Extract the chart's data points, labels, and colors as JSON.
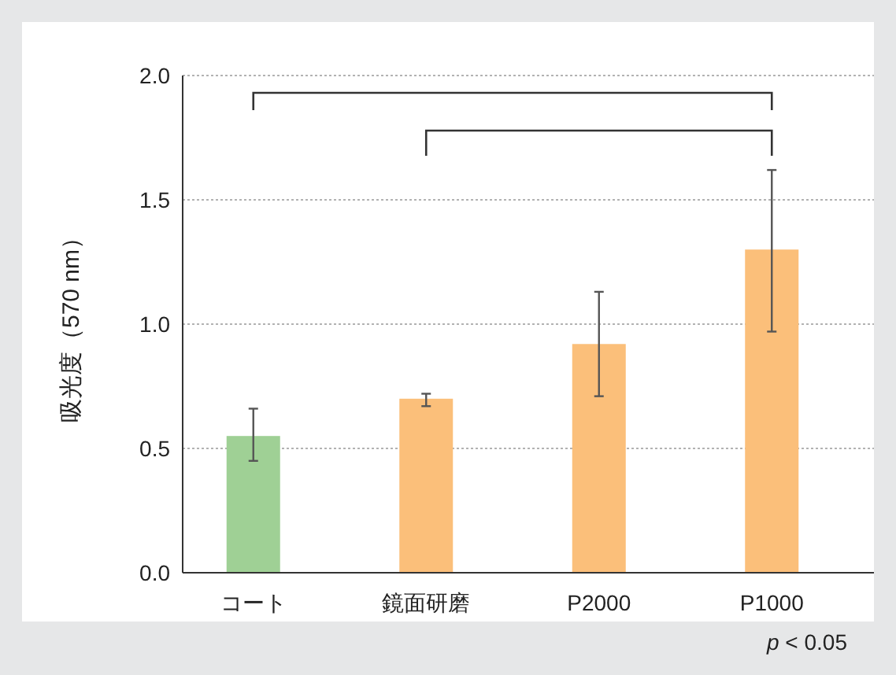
{
  "chart_data": {
    "type": "bar",
    "ylabel": "吸光度（570 nm）",
    "categories": [
      "コート",
      "鏡面研磨",
      "P2000",
      "P1000"
    ],
    "values": [
      0.55,
      0.7,
      0.92,
      1.3
    ],
    "colors": [
      "#9fd095",
      "#fbbf7a",
      "#fbbf7a",
      "#fbbf7a"
    ],
    "errors": [
      [
        0.45,
        0.66
      ],
      [
        0.67,
        0.72
      ],
      [
        0.71,
        1.13
      ],
      [
        0.97,
        1.62
      ]
    ],
    "ylim": [
      0,
      2
    ],
    "yticks": [
      {
        "value": 0,
        "label": "0.0"
      },
      {
        "value": 0.5,
        "label": "0.5"
      },
      {
        "value": 1,
        "label": "1.0"
      },
      {
        "value": 1.5,
        "label": "1.5"
      },
      {
        "value": 2,
        "label": "2.0"
      }
    ],
    "grid": "y",
    "annotations": [
      "*p* < 0.05"
    ]
  }
}
